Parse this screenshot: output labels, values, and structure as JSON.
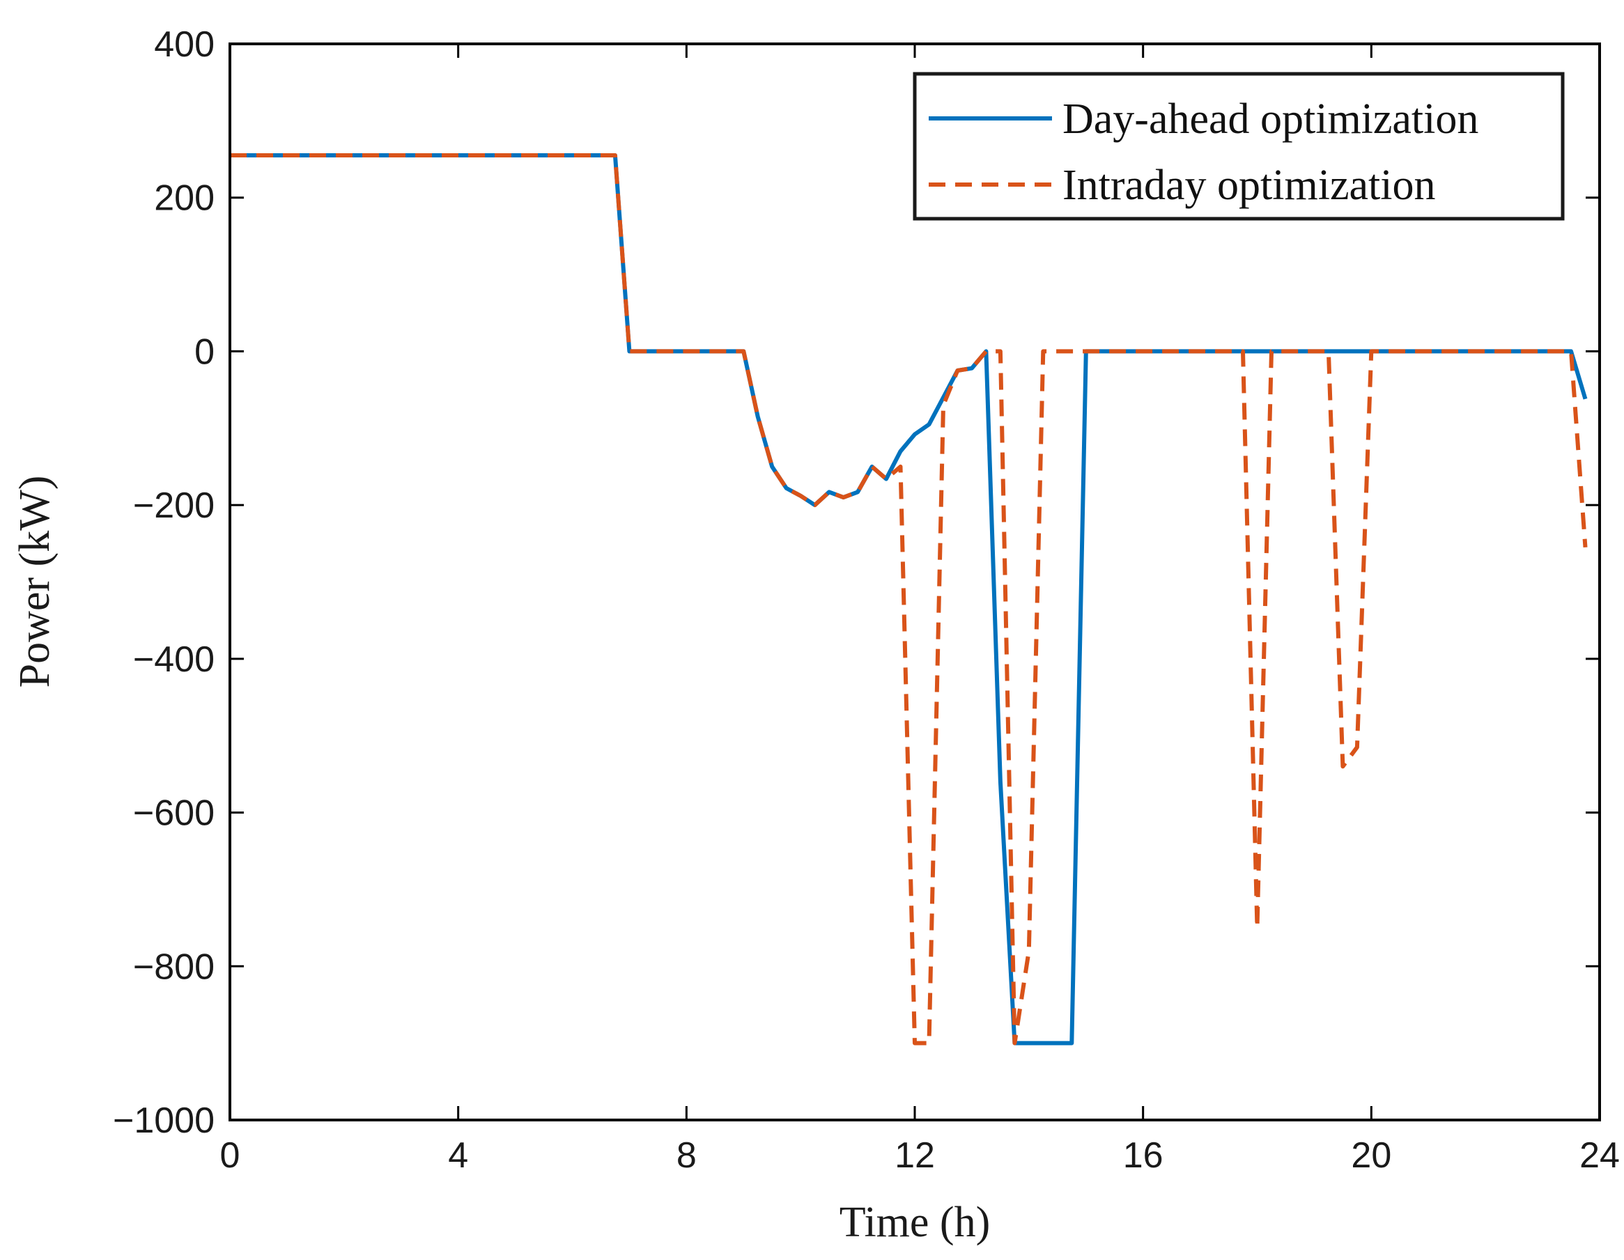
{
  "chart_data": {
    "type": "line",
    "title": "",
    "xlabel": "Time (h)",
    "ylabel": "Power (kW)",
    "xlim": [
      0,
      24
    ],
    "ylim": [
      -1000,
      400
    ],
    "xticks": [
      0,
      4,
      8,
      12,
      16,
      20,
      24
    ],
    "yticks": [
      400,
      200,
      0,
      -200,
      -400,
      -600,
      -800,
      -1000
    ],
    "ytick_labels": [
      "400",
      "200",
      "0",
      "−200",
      "−400",
      "−600",
      "−800",
      "−1000"
    ],
    "grid": false,
    "legend_position": "top-right",
    "series": [
      {
        "name": "Day-ahead optimization",
        "color": "#0072BD",
        "style": "solid",
        "x": [
          0,
          6.75,
          7.0,
          9.0,
          9.25,
          9.5,
          9.75,
          10.0,
          10.25,
          10.5,
          10.75,
          11.0,
          11.25,
          11.5,
          11.75,
          12.0,
          12.25,
          12.5,
          12.75,
          13.0,
          13.25,
          13.5,
          13.75,
          14.0,
          14.25,
          14.5,
          14.75,
          15.0,
          23.5,
          23.75
        ],
        "values": [
          255,
          255,
          0,
          0,
          -85,
          -150,
          -178,
          -188,
          -200,
          -183,
          -190,
          -183,
          -150,
          -166,
          -130,
          -108,
          -95,
          -60,
          -25,
          -22,
          0,
          -560,
          -900,
          -900,
          -900,
          -900,
          -900,
          0,
          0,
          -62
        ]
      },
      {
        "name": "Intraday optimization",
        "color": "#D95319",
        "style": "dashed",
        "x": [
          0,
          6.75,
          7.0,
          9.0,
          9.25,
          9.5,
          9.75,
          10.0,
          10.25,
          10.5,
          10.75,
          11.0,
          11.25,
          11.5,
          11.75,
          12.0,
          12.25,
          12.5,
          12.75,
          13.0,
          13.25,
          13.5,
          13.75,
          14.0,
          14.25,
          17.75,
          18.0,
          18.25,
          19.25,
          19.5,
          19.75,
          20.0,
          23.5,
          23.75
        ],
        "values": [
          255,
          255,
          0,
          0,
          -85,
          -150,
          -178,
          -188,
          -200,
          -183,
          -190,
          -183,
          -150,
          -166,
          -150,
          -900,
          -900,
          -70,
          -25,
          -22,
          0,
          0,
          -900,
          -780,
          0,
          0,
          -750,
          0,
          0,
          -540,
          -515,
          0,
          0,
          -255
        ]
      }
    ]
  }
}
